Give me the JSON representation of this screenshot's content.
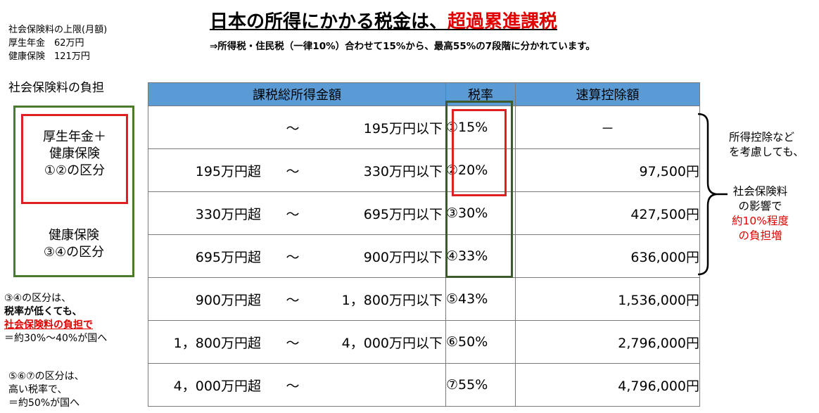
{
  "title": {
    "main": "日本の所得にかかる税金は、",
    "highlight": "超過累進課税"
  },
  "subtitle": "⇒所得税・住民税（一律10%）合わせて15%から、最高55%の7段階に分かれています。",
  "insurance_limit": {
    "heading": "社会保険料の上限(月額)",
    "pension": "厚生年金　62万円",
    "health": "健康保険　121万円"
  },
  "burden_heading": "社会保険料の負担",
  "box_red": {
    "line1": "厚生年金＋",
    "line2": "健康保険",
    "line3": "①②の区分"
  },
  "box_green": {
    "line1": "健康保険",
    "line2": "③④の区分"
  },
  "note1": {
    "line1": "③④の区分は、",
    "line2": "税率が低くても、",
    "line3": "社会保険料の負担で",
    "line4": "＝約30%～40%が国へ"
  },
  "note2": {
    "line1": "⑤⑥⑦の区分は、",
    "line2": "高い税率で、",
    "line3": "＝約50%が国へ"
  },
  "table": {
    "headers": {
      "income": "課税総所得金額",
      "rate": "税率",
      "deduction": "速算控除額"
    },
    "rows": [
      {
        "from": "",
        "tilde": "～",
        "to": "195万円以下",
        "rate": "①15%",
        "deduction": "－"
      },
      {
        "from": "195万円超",
        "tilde": "～",
        "to": "330万円以下",
        "rate": "②20%",
        "deduction": "97,500円"
      },
      {
        "from": "330万円超",
        "tilde": "～",
        "to": "695万円以下",
        "rate": "③30%",
        "deduction": "427,500円"
      },
      {
        "from": "695万円超",
        "tilde": "～",
        "to": "900万円以下",
        "rate": "④33%",
        "deduction": "636,000円"
      },
      {
        "from": "900万円超",
        "tilde": "～",
        "to": "1，800万円以下",
        "rate": "⑤43%",
        "deduction": "1,536,000円"
      },
      {
        "from": "1，800万円超",
        "tilde": "～",
        "to": "4，000万円以下",
        "rate": "⑥50%",
        "deduction": "2,796,000円"
      },
      {
        "from": "4，000万円超",
        "tilde": "～",
        "to": "",
        "rate": "⑦55%",
        "deduction": "4,796,000円"
      }
    ]
  },
  "side_note": {
    "line1": "所得控除など",
    "line2": "を考慮しても、",
    "line3": "社会保険料",
    "line4": "の影響で",
    "line5": "約10%程度",
    "line6": "の負担増"
  }
}
